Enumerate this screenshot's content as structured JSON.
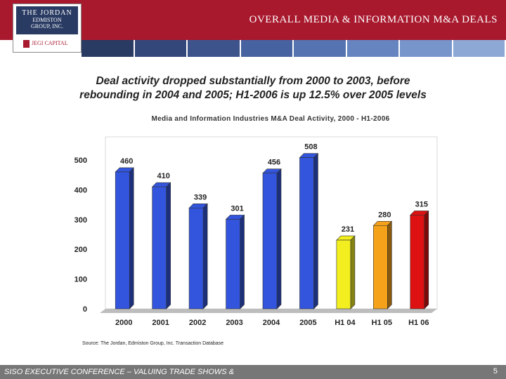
{
  "header": {
    "title": "OVERALL MEDIA & INFORMATION M&A DEALS",
    "logo_lines": [
      "THE JORDAN",
      "EDMISTON",
      "GROUP, INC."
    ],
    "logo_capital": "JEGI CAPITAL",
    "colors": {
      "band": "#a8192e",
      "logo_bg": "#2a3b63"
    },
    "stripe_colors": [
      "#2a3b63",
      "#34477a",
      "#3d538c",
      "#4762a0",
      "#5573b0",
      "#6684c0",
      "#7794cb",
      "#8ea8d6"
    ]
  },
  "headline": {
    "line1": "Deal activity dropped substantially from 2000 to 2003, before",
    "line2": "rebounding in 2004 and 2005; H1-2006 is up 12.5% over 2005 levels"
  },
  "chart_data": {
    "type": "bar",
    "title": "Media and Information Industries M&A Deal Activity, 2000 - H1-2006",
    "categories": [
      "2000",
      "2001",
      "2002",
      "2003",
      "2004",
      "2005",
      "H1 04",
      "H1 05",
      "H1 06"
    ],
    "values": [
      460,
      410,
      339,
      301,
      456,
      508,
      231,
      280,
      315
    ],
    "value_labels": [
      "460",
      "410",
      "339",
      "301",
      "456",
      "508",
      "231",
      "280",
      "315"
    ],
    "bar_colors": [
      "#3355dd",
      "#3355dd",
      "#3355dd",
      "#3355dd",
      "#3355dd",
      "#3355dd",
      "#f2ee1f",
      "#f5a21a",
      "#dd1111"
    ],
    "ylim": [
      0,
      500
    ],
    "yticks": [
      "0",
      "100",
      "200",
      "300",
      "400",
      "500"
    ],
    "xlabel": "",
    "ylabel": "",
    "grid": false,
    "legend": "none"
  },
  "source": "Source: The Jordan, Edmiston Group, Inc. Transaction Database",
  "footer": {
    "text": "SISO EXECUTIVE CONFERENCE – VALUING TRADE SHOWS &",
    "page": "5"
  }
}
